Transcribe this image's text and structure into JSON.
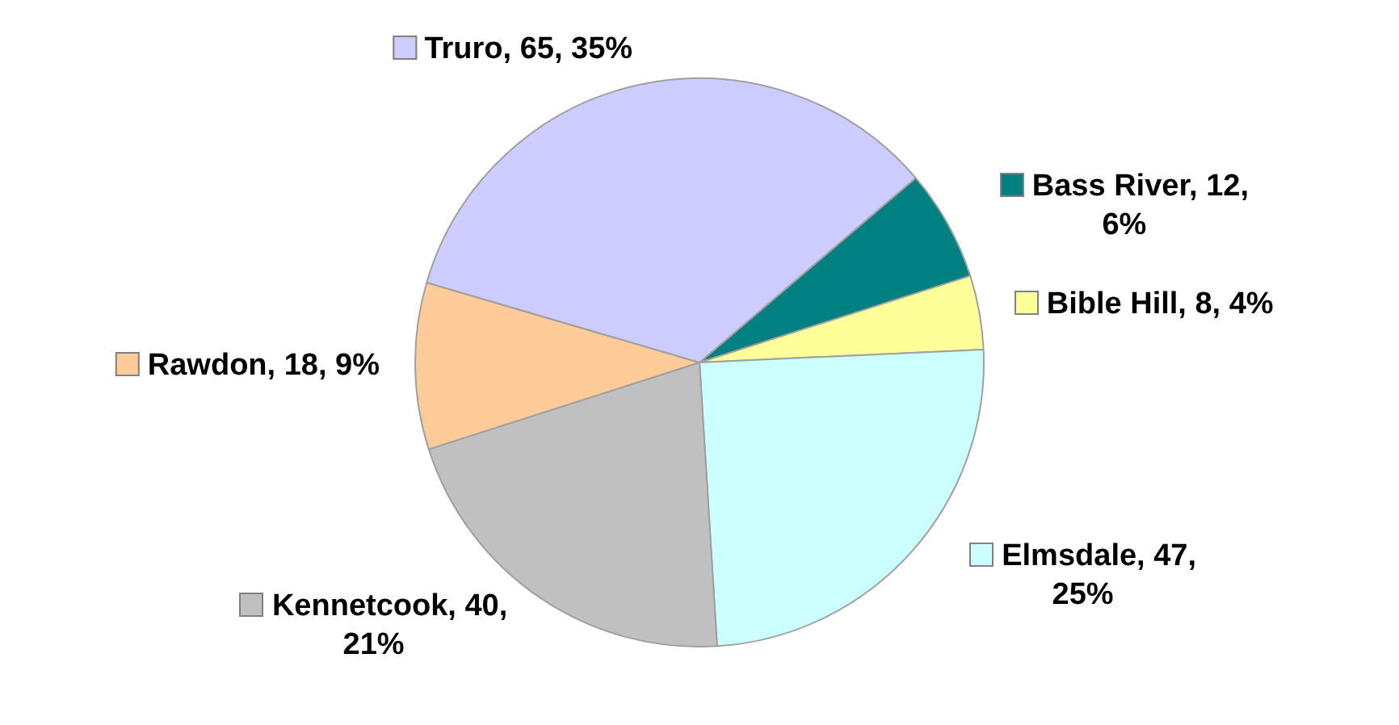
{
  "chart_data": {
    "type": "pie",
    "categories": [
      "Bass River",
      "Bible Hill",
      "Elmsdale",
      "Kennetcook",
      "Rawdon",
      "Truro"
    ],
    "values": [
      12,
      8,
      47,
      40,
      18,
      65
    ],
    "colors": [
      "#008080",
      "#ffff99",
      "#ccffff",
      "#c0c0c0",
      "#ffcc99",
      "#ccccff"
    ],
    "value_labels": [
      "12, 6%",
      "8, 4%",
      "47, 25%",
      "40, 21%",
      "18, 9%",
      "65, 35%"
    ],
    "legend": true
  }
}
